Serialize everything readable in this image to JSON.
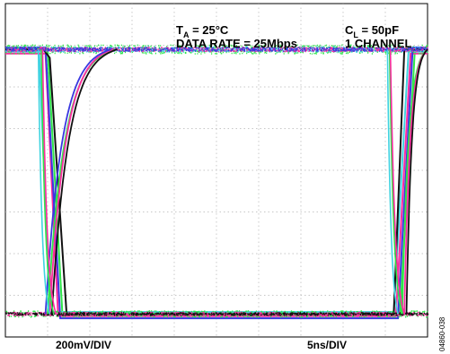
{
  "chart_data": {
    "type": "line",
    "title": "",
    "xlabel": "",
    "ylabel": "",
    "grid": true,
    "legend": "none",
    "annotations": {
      "temperature": "T",
      "temperature_sub": "A",
      "temperature_value": " = 25°C",
      "data_rate": "DATA RATE = 25Mbps",
      "load": "C",
      "load_sub": "L",
      "load_value": " = 50pF",
      "channels": "1 CHANNEL",
      "vertical_scale": "200mV/DIV",
      "horizontal_scale": "5ns/DIV",
      "figure_id": "04860-038"
    },
    "divisions": {
      "x": 10,
      "y": 8
    },
    "xlim": [
      0,
      10
    ],
    "ylim": [
      0,
      8
    ],
    "levels": {
      "high": 6.9,
      "low": 0.55
    },
    "series": [
      {
        "color": "#2ee64a",
        "values_x": [
          0,
          0.9,
          1.0,
          1.35,
          2.0,
          9.2,
          9.35,
          9.7,
          10
        ],
        "values_y": [
          6.9,
          6.9,
          6.9,
          0.55,
          0.55,
          0.55,
          0.55,
          6.9,
          6.9
        ]
      },
      {
        "color": "#3fd3e0",
        "values_x": [
          0,
          0.75,
          0.8,
          1.05,
          2.0,
          9.05,
          9.2,
          9.55,
          10
        ],
        "values_y": [
          6.85,
          6.85,
          6.85,
          0.6,
          0.6,
          0.6,
          0.6,
          6.85,
          6.85
        ]
      },
      {
        "color": "#ff2ba0",
        "values_x": [
          0,
          0.8,
          0.95,
          1.25,
          2.0,
          9.1,
          9.25,
          9.6,
          10
        ],
        "values_y": [
          6.8,
          6.8,
          6.8,
          0.5,
          0.5,
          0.5,
          0.5,
          6.8,
          6.8
        ]
      },
      {
        "color": "#3a38e0",
        "values_x": [
          0,
          0.85,
          0.95,
          1.3,
          2.0,
          9.15,
          9.3,
          9.65,
          10
        ],
        "values_y": [
          6.95,
          6.95,
          6.95,
          0.45,
          0.45,
          0.45,
          0.45,
          6.95,
          6.95
        ]
      },
      {
        "color": "#111111",
        "values_x": [
          0,
          0.9,
          1.05,
          1.45,
          2.6,
          9.2,
          9.45,
          10
        ],
        "values_y": [
          6.9,
          6.9,
          6.7,
          0.55,
          0.55,
          0.55,
          6.9,
          6.9
        ]
      }
    ],
    "rise_transitions": [
      {
        "color": "#2ee64a",
        "x_start": 1.0,
        "x_end": 2.6
      },
      {
        "color": "#ff2ba0",
        "x_start": 1.05,
        "x_end": 2.55
      },
      {
        "color": "#3a38e0",
        "x_start": 0.95,
        "x_end": 2.5
      },
      {
        "color": "#111111",
        "x_start": 1.1,
        "x_end": 2.65
      },
      {
        "color": "#2ee64a",
        "x_start": 9.4,
        "x_end": 10
      },
      {
        "color": "#ff2ba0",
        "x_start": 9.45,
        "x_end": 10
      },
      {
        "color": "#111111",
        "x_start": 9.5,
        "x_end": 10
      }
    ],
    "fall_transitions": [
      {
        "color": "#3fd3e0",
        "x_start": 0.78,
        "x_end": 1.05
      },
      {
        "color": "#2ee64a",
        "x_start": 0.85,
        "x_end": 1.15
      },
      {
        "color": "#ff2ba0",
        "x_start": 0.88,
        "x_end": 1.2
      },
      {
        "color": "#3fd3e0",
        "x_start": 9.05,
        "x_end": 9.3
      },
      {
        "color": "#2ee64a",
        "x_start": 9.1,
        "x_end": 9.4
      },
      {
        "color": "#ff2ba0",
        "x_start": 9.12,
        "x_end": 9.45
      }
    ]
  }
}
